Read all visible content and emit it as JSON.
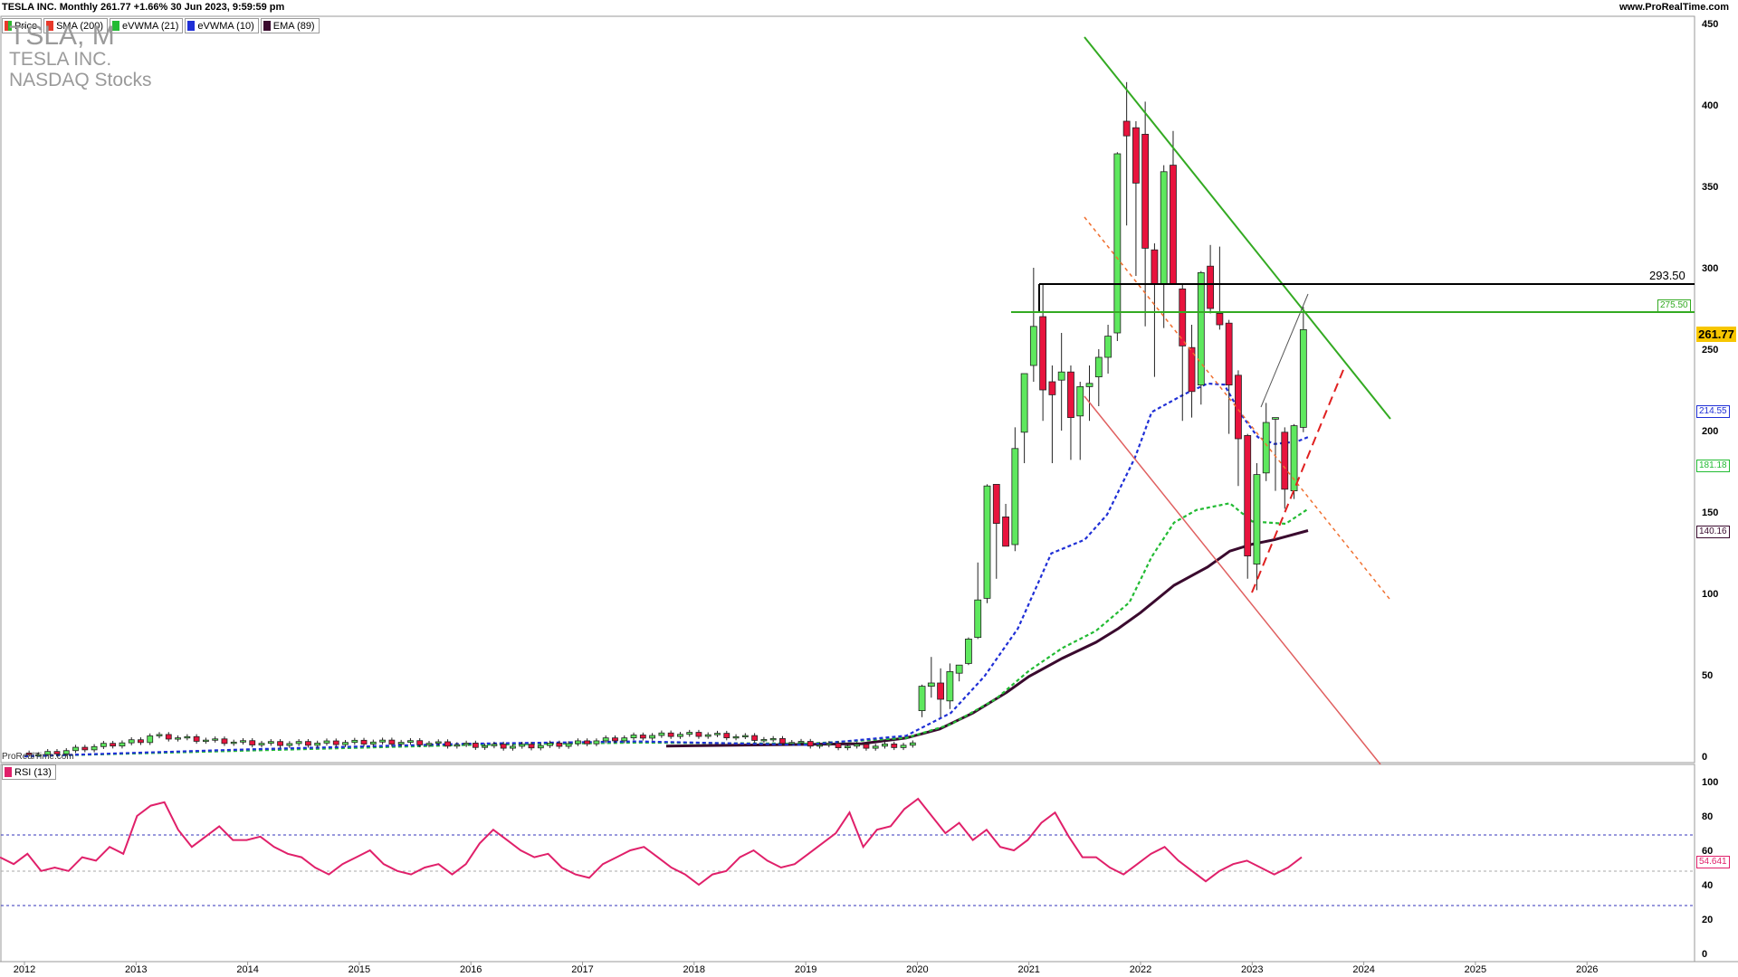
{
  "header": {
    "title": "TESLA INC. Monthly 261.77 +1.66% 30 Jun 2023, 9:59:59 pm",
    "site": "www.ProRealTime.com"
  },
  "ticker": {
    "symbol": "TSLA, M",
    "company": "TESLA INC.",
    "exchange": "NASDAQ Stocks"
  },
  "legend": [
    {
      "label": "Price",
      "color": "#2eb82e"
    },
    {
      "label": "SMA (200)",
      "color": "#e8392a"
    },
    {
      "label": "eVWMA (21)",
      "color": "#22bb33"
    },
    {
      "label": "eVWMA (10)",
      "color": "#1f2fd6"
    },
    {
      "label": "EMA (89)",
      "color": "#3a0a2e"
    }
  ],
  "watermark": "ProRealTime.com",
  "rsi_label": "RSI (13)",
  "markers": {
    "last_price": "261.77",
    "resistance": "293.50",
    "support_green": "275.50",
    "evwma10": "214.55",
    "evwma21": "181.18",
    "ema89": "140.16",
    "rsi": "54.641"
  },
  "chart_data": [
    {
      "type": "candlestick",
      "title": "TESLA INC. Monthly",
      "x_axis": {
        "labels": [
          "2012",
          "2013",
          "2014",
          "2015",
          "2016",
          "2017",
          "2018",
          "2019",
          "2020",
          "2021",
          "2022",
          "2023",
          "2024",
          "2025",
          "2026"
        ]
      },
      "y_axis": {
        "ticks": [
          0,
          50,
          100,
          150,
          200,
          250,
          300,
          350,
          400,
          450
        ],
        "range": [
          0,
          450
        ]
      },
      "candles_recent": [
        {
          "date": "2020-01",
          "open": 28,
          "high": 44,
          "low": 24,
          "close": 43
        },
        {
          "date": "2020-02",
          "open": 43,
          "high": 61,
          "low": 36,
          "close": 45
        },
        {
          "date": "2020-03",
          "open": 45,
          "high": 54,
          "low": 24,
          "close": 35
        },
        {
          "date": "2020-04",
          "open": 34,
          "high": 57,
          "low": 29,
          "close": 52
        },
        {
          "date": "2020-05",
          "open": 51,
          "high": 56,
          "low": 46,
          "close": 56
        },
        {
          "date": "2020-06",
          "open": 57,
          "high": 73,
          "low": 56,
          "close": 72
        },
        {
          "date": "2020-07",
          "open": 73,
          "high": 119,
          "low": 72,
          "close": 96
        },
        {
          "date": "2020-08",
          "open": 97,
          "high": 167,
          "low": 94,
          "close": 166
        },
        {
          "date": "2020-09",
          "open": 167,
          "high": 167,
          "low": 109,
          "close": 143
        },
        {
          "date": "2020-10",
          "open": 147,
          "high": 155,
          "low": 135,
          "close": 129
        },
        {
          "date": "2020-11",
          "open": 130,
          "high": 202,
          "low": 126,
          "close": 189
        },
        {
          "date": "2020-12",
          "open": 199,
          "high": 231,
          "low": 180,
          "close": 235
        },
        {
          "date": "2021-01",
          "open": 240,
          "high": 300,
          "low": 230,
          "close": 264
        },
        {
          "date": "2021-02",
          "open": 270,
          "high": 290,
          "low": 206,
          "close": 225
        },
        {
          "date": "2021-03",
          "open": 230,
          "high": 240,
          "low": 180,
          "close": 222
        },
        {
          "date": "2021-04",
          "open": 231,
          "high": 260,
          "low": 200,
          "close": 236
        },
        {
          "date": "2021-05",
          "open": 236,
          "high": 240,
          "low": 182,
          "close": 208
        },
        {
          "date": "2021-06",
          "open": 209,
          "high": 230,
          "low": 182,
          "close": 227
        },
        {
          "date": "2021-07",
          "open": 227,
          "high": 240,
          "low": 206,
          "close": 229
        },
        {
          "date": "2021-08",
          "open": 233,
          "high": 250,
          "low": 215,
          "close": 245
        },
        {
          "date": "2021-09",
          "open": 245,
          "high": 265,
          "low": 235,
          "close": 258
        },
        {
          "date": "2021-10",
          "open": 260,
          "high": 371,
          "low": 255,
          "close": 370
        },
        {
          "date": "2021-11",
          "open": 390,
          "high": 414,
          "low": 326,
          "close": 381
        },
        {
          "date": "2021-12",
          "open": 386,
          "high": 390,
          "low": 295,
          "close": 352
        },
        {
          "date": "2022-01",
          "open": 382,
          "high": 402,
          "low": 264,
          "close": 312
        },
        {
          "date": "2022-02",
          "open": 311,
          "high": 315,
          "low": 233,
          "close": 290
        },
        {
          "date": "2022-03",
          "open": 290,
          "high": 363,
          "low": 263,
          "close": 359
        },
        {
          "date": "2022-04",
          "open": 363,
          "high": 384,
          "low": 290,
          "close": 290
        },
        {
          "date": "2022-05",
          "open": 287,
          "high": 290,
          "low": 206,
          "close": 252
        },
        {
          "date": "2022-06",
          "open": 251,
          "high": 265,
          "low": 208,
          "close": 224
        },
        {
          "date": "2022-07",
          "open": 228,
          "high": 298,
          "low": 216,
          "close": 297
        },
        {
          "date": "2022-08",
          "open": 301,
          "high": 314,
          "low": 272,
          "close": 275
        },
        {
          "date": "2022-09",
          "open": 272,
          "high": 313,
          "low": 262,
          "close": 265
        },
        {
          "date": "2022-10",
          "open": 266,
          "high": 268,
          "low": 198,
          "close": 228
        },
        {
          "date": "2022-11",
          "open": 234,
          "high": 237,
          "low": 166,
          "close": 195
        },
        {
          "date": "2022-12",
          "open": 197,
          "high": 198,
          "low": 109,
          "close": 123
        },
        {
          "date": "2023-01",
          "open": 118,
          "high": 180,
          "low": 102,
          "close": 173
        },
        {
          "date": "2023-02",
          "open": 174,
          "high": 217,
          "low": 169,
          "close": 205
        },
        {
          "date": "2023-03",
          "open": 207,
          "high": 207,
          "low": 163,
          "close": 208
        },
        {
          "date": "2023-04",
          "open": 199,
          "high": 202,
          "low": 152,
          "close": 164
        },
        {
          "date": "2023-05",
          "open": 163,
          "high": 204,
          "low": 158,
          "close": 203
        },
        {
          "date": "2023-06",
          "open": 202,
          "high": 276,
          "low": 199,
          "close": 262
        }
      ]
    },
    {
      "type": "line",
      "title": "RSI (13)",
      "y_axis": {
        "ticks": [
          0,
          20,
          40,
          60,
          80,
          100
        ],
        "range": [
          0,
          100
        ]
      },
      "guides": [
        70,
        50,
        30
      ]
    }
  ]
}
